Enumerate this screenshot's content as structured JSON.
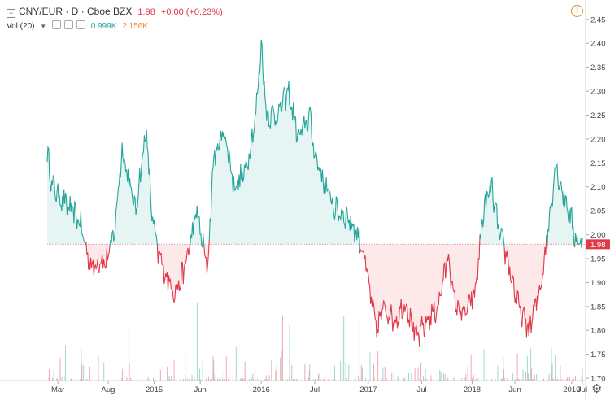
{
  "header": {
    "symbol": "CNY/EUR · D · Cboe BZX",
    "last": "1.98",
    "change": "+0.00 (+0.23%)",
    "volume_label": "Vol (20)",
    "volume_value": "0.999K",
    "volume_ma": "2.156K"
  },
  "price_tag": "1.98",
  "colors": {
    "up": "#26a69a",
    "down": "#e0394a",
    "up_fill": "#e6f5f3",
    "down_fill": "#fde8ea"
  },
  "icons": {
    "warning": "warning-icon",
    "settings": "gear-icon"
  },
  "chart_data": {
    "type": "line",
    "baseline": 1.98,
    "ylim": [
      1.695,
      2.465
    ],
    "yticks": [
      2.45,
      2.4,
      2.35,
      2.3,
      2.25,
      2.2,
      2.15,
      2.1,
      2.05,
      2.0,
      1.95,
      1.9,
      1.85,
      1.8,
      1.75,
      1.7
    ],
    "xticks": [
      {
        "label": "Mar",
        "t": 0.02
      },
      {
        "label": "Aug",
        "t": 0.114
      },
      {
        "label": "2015",
        "t": 0.2
      },
      {
        "label": "Jun",
        "t": 0.286
      },
      {
        "label": "2016",
        "t": 0.4
      },
      {
        "label": "Jul",
        "t": 0.5
      },
      {
        "label": "2017",
        "t": 0.6
      },
      {
        "label": "Jul",
        "t": 0.7
      },
      {
        "label": "2018",
        "t": 0.794
      },
      {
        "label": "Jun",
        "t": 0.874
      },
      {
        "label": "2019",
        "t": 0.98
      },
      {
        "label": "Jul",
        "t": 1.0
      }
    ],
    "keypoints": [
      [
        0.0,
        2.17
      ],
      [
        0.01,
        2.1
      ],
      [
        0.03,
        2.07
      ],
      [
        0.06,
        2.03
      ],
      [
        0.075,
        1.96
      ],
      [
        0.085,
        1.93
      ],
      [
        0.1,
        1.95
      ],
      [
        0.11,
        1.94
      ],
      [
        0.125,
        2.0
      ],
      [
        0.14,
        2.18
      ],
      [
        0.155,
        2.1
      ],
      [
        0.165,
        2.05
      ],
      [
        0.185,
        2.22
      ],
      [
        0.195,
        2.05
      ],
      [
        0.205,
        1.97
      ],
      [
        0.22,
        1.92
      ],
      [
        0.24,
        1.88
      ],
      [
        0.255,
        1.92
      ],
      [
        0.28,
        2.05
      ],
      [
        0.29,
        1.98
      ],
      [
        0.3,
        1.93
      ],
      [
        0.31,
        2.15
      ],
      [
        0.33,
        2.22
      ],
      [
        0.35,
        2.1
      ],
      [
        0.37,
        2.13
      ],
      [
        0.39,
        2.25
      ],
      [
        0.4,
        2.4
      ],
      [
        0.41,
        2.25
      ],
      [
        0.43,
        2.25
      ],
      [
        0.45,
        2.3
      ],
      [
        0.47,
        2.2
      ],
      [
        0.49,
        2.25
      ],
      [
        0.5,
        2.17
      ],
      [
        0.52,
        2.1
      ],
      [
        0.54,
        2.05
      ],
      [
        0.56,
        2.04
      ],
      [
        0.58,
        2.0
      ],
      [
        0.59,
        1.97
      ],
      [
        0.6,
        1.9
      ],
      [
        0.615,
        1.8
      ],
      [
        0.63,
        1.85
      ],
      [
        0.65,
        1.82
      ],
      [
        0.67,
        1.86
      ],
      [
        0.69,
        1.78
      ],
      [
        0.71,
        1.82
      ],
      [
        0.73,
        1.85
      ],
      [
        0.75,
        1.96
      ],
      [
        0.76,
        1.86
      ],
      [
        0.78,
        1.83
      ],
      [
        0.8,
        1.88
      ],
      [
        0.815,
        2.05
      ],
      [
        0.83,
        2.1
      ],
      [
        0.845,
        2.0
      ],
      [
        0.86,
        1.95
      ],
      [
        0.87,
        1.9
      ],
      [
        0.88,
        1.85
      ],
      [
        0.9,
        1.8
      ],
      [
        0.92,
        1.88
      ],
      [
        0.935,
        2.0
      ],
      [
        0.95,
        2.15
      ],
      [
        0.96,
        2.1
      ],
      [
        0.975,
        2.05
      ],
      [
        0.985,
        2.0
      ],
      [
        0.995,
        1.98
      ],
      [
        1.0,
        1.98
      ]
    ]
  }
}
